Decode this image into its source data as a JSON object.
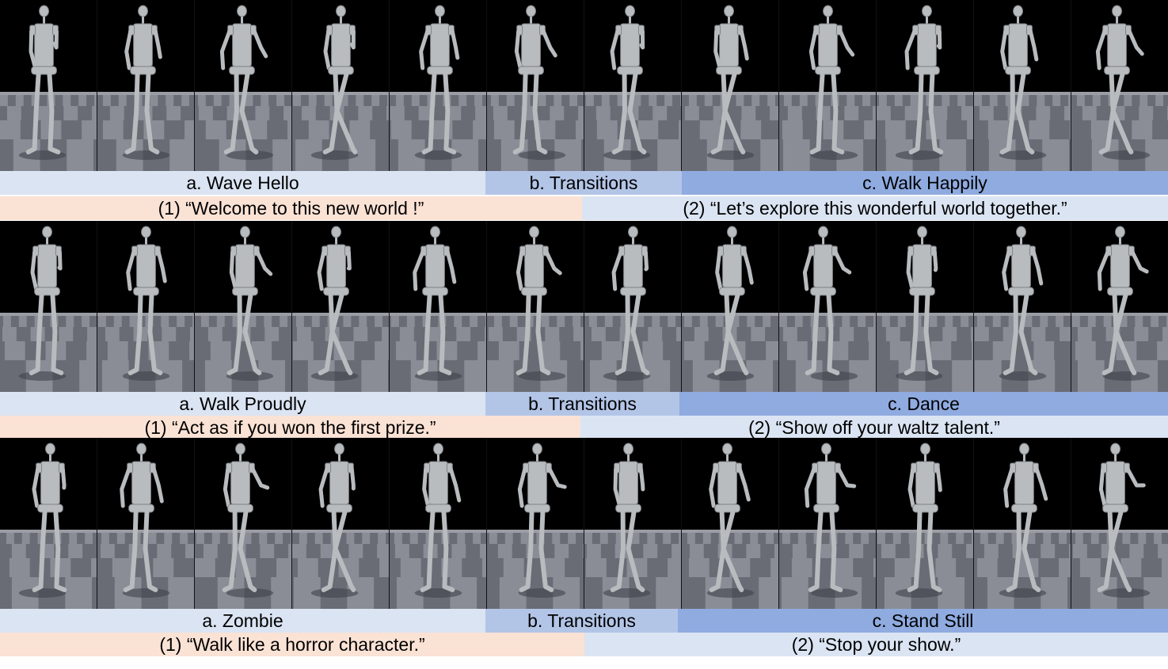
{
  "groups": [
    {
      "labels": {
        "a": "a. Wave Hello",
        "b": "b. Transitions",
        "c": "c. Walk Happily"
      },
      "instructions": {
        "first": "(1) “Welcome to this new world !”",
        "second": "(2) “Let’s explore this wonderful world together.”"
      },
      "frames": 12
    },
    {
      "labels": {
        "a": "a. Walk Proudly",
        "b": "b. Transitions",
        "c": "c. Dance"
      },
      "instructions": {
        "first": "(1) “Act as if you won the first prize.”",
        "second": "(2) “Show off your waltz talent.”"
      },
      "frames": 12
    },
    {
      "labels": {
        "a": "a. Zombie",
        "b": "b. Transitions",
        "c": "c. Stand Still"
      },
      "instructions": {
        "first": "(1) “Walk like a horror character.”",
        "second": "(2) “Stop your show.”"
      },
      "frames": 12
    }
  ],
  "colors": {
    "label_light": "#dbe4f2",
    "label_mid": "#b3c5e7",
    "label_dark": "#8fabe0",
    "instruction_peach": "#fae2d5",
    "sky": "#000000",
    "floor_light": "#8a8d96",
    "floor_dark": "#5e616a",
    "robot": "#b9bcbf"
  }
}
